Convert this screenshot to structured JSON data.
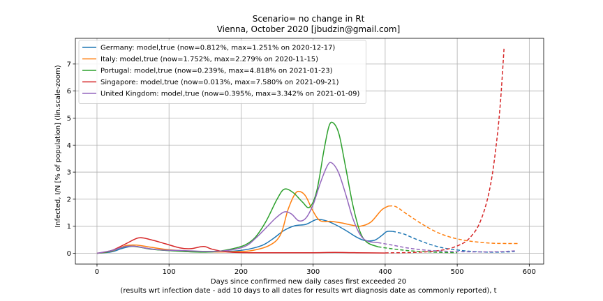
{
  "chart_data": {
    "type": "line",
    "title": "Scenario= no change in Rt",
    "subtitle": "Vienna, October 2020 [jbudzin@gmail.com]",
    "xlabel": "Days since confirmed new daily cases first exceeded 20",
    "xlabel2": "(results wrt infection date - add 10 days to all dates for results wrt diagnosis date as commonly reported), t",
    "ylabel": "Infected, I/N [% of population] (lin.scale-zoom)",
    "xlim": [
      -30,
      620
    ],
    "ylim": [
      -0.4,
      7.95
    ],
    "xticks": [
      0,
      100,
      200,
      300,
      400,
      500,
      600
    ],
    "yticks": [
      0,
      1,
      2,
      3,
      4,
      5,
      6,
      7
    ],
    "grid": true,
    "legend_position": "upper-left",
    "series": [
      {
        "name": "Germany: model,true (now=0.812%, max=1.251% on 2020-12-17)",
        "color": "#1f77b4",
        "solid": [
          [
            0,
            0
          ],
          [
            20,
            0.05
          ],
          [
            35,
            0.18
          ],
          [
            50,
            0.26
          ],
          [
            65,
            0.2
          ],
          [
            80,
            0.14
          ],
          [
            100,
            0.1
          ],
          [
            130,
            0.06
          ],
          [
            160,
            0.05
          ],
          [
            190,
            0.08
          ],
          [
            210,
            0.15
          ],
          [
            230,
            0.3
          ],
          [
            245,
            0.55
          ],
          [
            260,
            0.85
          ],
          [
            275,
            1.02
          ],
          [
            290,
            1.07
          ],
          [
            305,
            1.25
          ],
          [
            318,
            1.2
          ],
          [
            330,
            1.07
          ],
          [
            345,
            0.85
          ],
          [
            360,
            0.6
          ],
          [
            372,
            0.47
          ],
          [
            385,
            0.48
          ],
          [
            395,
            0.65
          ],
          [
            402,
            0.8
          ],
          [
            410,
            0.81
          ]
        ],
        "dashed": [
          [
            410,
            0.81
          ],
          [
            425,
            0.72
          ],
          [
            440,
            0.55
          ],
          [
            460,
            0.35
          ],
          [
            480,
            0.2
          ],
          [
            500,
            0.12
          ],
          [
            520,
            0.07
          ],
          [
            545,
            0.04
          ],
          [
            570,
            0.05
          ],
          [
            580,
            0.07
          ]
        ]
      },
      {
        "name": "Italy: model,true (now=1.752%, max=2.279% on 2020-11-15)",
        "color": "#ff7f0e",
        "solid": [
          [
            0,
            0
          ],
          [
            20,
            0.08
          ],
          [
            40,
            0.28
          ],
          [
            55,
            0.3
          ],
          [
            75,
            0.22
          ],
          [
            100,
            0.13
          ],
          [
            130,
            0.08
          ],
          [
            160,
            0.05
          ],
          [
            190,
            0.06
          ],
          [
            215,
            0.1
          ],
          [
            240,
            0.3
          ],
          [
            255,
            0.7
          ],
          [
            265,
            1.6
          ],
          [
            275,
            2.2
          ],
          [
            282,
            2.28
          ],
          [
            290,
            2.1
          ],
          [
            300,
            1.55
          ],
          [
            310,
            1.2
          ],
          [
            325,
            1.18
          ],
          [
            340,
            1.12
          ],
          [
            352,
            1.05
          ],
          [
            365,
            1.0
          ],
          [
            380,
            1.15
          ],
          [
            395,
            1.6
          ],
          [
            405,
            1.75
          ]
        ],
        "dashed": [
          [
            405,
            1.75
          ],
          [
            415,
            1.72
          ],
          [
            430,
            1.45
          ],
          [
            450,
            1.1
          ],
          [
            470,
            0.8
          ],
          [
            490,
            0.6
          ],
          [
            510,
            0.48
          ],
          [
            530,
            0.41
          ],
          [
            550,
            0.37
          ],
          [
            570,
            0.36
          ],
          [
            585,
            0.36
          ]
        ]
      },
      {
        "name": "Portugal: model,true (now=0.239%, max=4.818% on 2021-01-23)",
        "color": "#2ca02c",
        "solid": [
          [
            0,
            0
          ],
          [
            15,
            0.05
          ],
          [
            30,
            0.18
          ],
          [
            45,
            0.26
          ],
          [
            60,
            0.22
          ],
          [
            75,
            0.15
          ],
          [
            100,
            0.1
          ],
          [
            130,
            0.05
          ],
          [
            160,
            0.05
          ],
          [
            185,
            0.15
          ],
          [
            205,
            0.3
          ],
          [
            220,
            0.6
          ],
          [
            235,
            1.2
          ],
          [
            250,
            2.0
          ],
          [
            260,
            2.37
          ],
          [
            272,
            2.25
          ],
          [
            285,
            1.9
          ],
          [
            295,
            1.7
          ],
          [
            305,
            2.3
          ],
          [
            315,
            3.8
          ],
          [
            322,
            4.7
          ],
          [
            328,
            4.82
          ],
          [
            336,
            4.4
          ],
          [
            345,
            3.2
          ],
          [
            355,
            1.8
          ],
          [
            365,
            0.8
          ],
          [
            375,
            0.4
          ],
          [
            390,
            0.24
          ]
        ],
        "dashed": [
          [
            390,
            0.24
          ],
          [
            400,
            0.2
          ],
          [
            420,
            0.13
          ],
          [
            440,
            0.08
          ],
          [
            460,
            0.05
          ],
          [
            480,
            0.03
          ],
          [
            500,
            0.02
          ]
        ]
      },
      {
        "name": "Singapore: model,true (now=0.013%, max=7.580% on 2021-09-21)",
        "color": "#d62728",
        "solid": [
          [
            0,
            0
          ],
          [
            20,
            0.1
          ],
          [
            40,
            0.35
          ],
          [
            58,
            0.57
          ],
          [
            75,
            0.5
          ],
          [
            95,
            0.35
          ],
          [
            115,
            0.2
          ],
          [
            130,
            0.17
          ],
          [
            148,
            0.25
          ],
          [
            160,
            0.15
          ],
          [
            180,
            0.05
          ],
          [
            210,
            0.02
          ],
          [
            260,
            0.02
          ],
          [
            300,
            0.02
          ],
          [
            330,
            0.03
          ],
          [
            360,
            0.02
          ],
          [
            400,
            0.01
          ]
        ],
        "dashed": [
          [
            400,
            0.013
          ],
          [
            420,
            0.02
          ],
          [
            440,
            0.03
          ],
          [
            460,
            0.06
          ],
          [
            480,
            0.12
          ],
          [
            495,
            0.22
          ],
          [
            510,
            0.4
          ],
          [
            520,
            0.65
          ],
          [
            530,
            1.05
          ],
          [
            540,
            1.8
          ],
          [
            548,
            2.8
          ],
          [
            555,
            4.2
          ],
          [
            560,
            5.6
          ],
          [
            565,
            7.58
          ]
        ]
      },
      {
        "name": "United Kingdom: model,true (now=0.395%, max=3.342% on 2021-01-09)",
        "color": "#9467bd",
        "solid": [
          [
            0,
            0
          ],
          [
            20,
            0.1
          ],
          [
            40,
            0.25
          ],
          [
            55,
            0.25
          ],
          [
            70,
            0.18
          ],
          [
            90,
            0.12
          ],
          [
            120,
            0.1
          ],
          [
            150,
            0.07
          ],
          [
            180,
            0.1
          ],
          [
            205,
            0.25
          ],
          [
            220,
            0.55
          ],
          [
            235,
            0.95
          ],
          [
            248,
            1.3
          ],
          [
            260,
            1.53
          ],
          [
            270,
            1.45
          ],
          [
            280,
            1.2
          ],
          [
            290,
            1.3
          ],
          [
            300,
            1.8
          ],
          [
            310,
            2.6
          ],
          [
            320,
            3.25
          ],
          [
            326,
            3.34
          ],
          [
            335,
            3.0
          ],
          [
            345,
            2.2
          ],
          [
            355,
            1.3
          ],
          [
            365,
            0.7
          ],
          [
            375,
            0.45
          ],
          [
            390,
            0.4
          ]
        ],
        "dashed": [
          [
            390,
            0.395
          ],
          [
            410,
            0.3
          ],
          [
            430,
            0.2
          ],
          [
            450,
            0.13
          ],
          [
            470,
            0.09
          ],
          [
            500,
            0.06
          ],
          [
            530,
            0.05
          ],
          [
            560,
            0.06
          ],
          [
            580,
            0.09
          ]
        ]
      }
    ]
  }
}
